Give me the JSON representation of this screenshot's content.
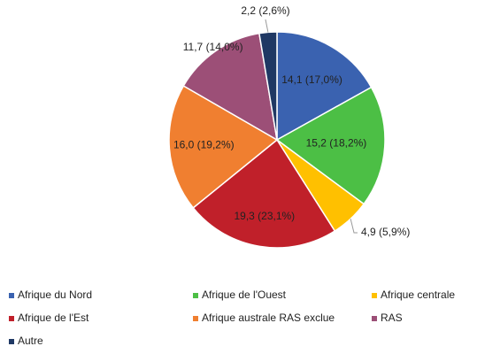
{
  "chart_data": {
    "type": "pie",
    "categories": [
      "Afrique du Nord",
      "Afrique de l'Ouest",
      "Afrique centrale",
      "Afrique de l'Est",
      "Afrique australe RAS exclue",
      "RAS",
      "Autre"
    ],
    "values": [
      14.1,
      15.2,
      4.9,
      19.3,
      16.0,
      11.7,
      2.2
    ],
    "value_labels": [
      "14,1 (17,0%)",
      "15,2 (18,2%)",
      "4,9 (5,9%)",
      "19,3 (23,1%)",
      "16,0 (19,2%)",
      "11,7 (14,0%)",
      "2,2 (2,6%)"
    ],
    "colors": [
      "#3a62b0",
      "#4cbf45",
      "#ffc000",
      "#c0202a",
      "#f07f30",
      "#9c4f77",
      "#1f3864"
    ]
  }
}
